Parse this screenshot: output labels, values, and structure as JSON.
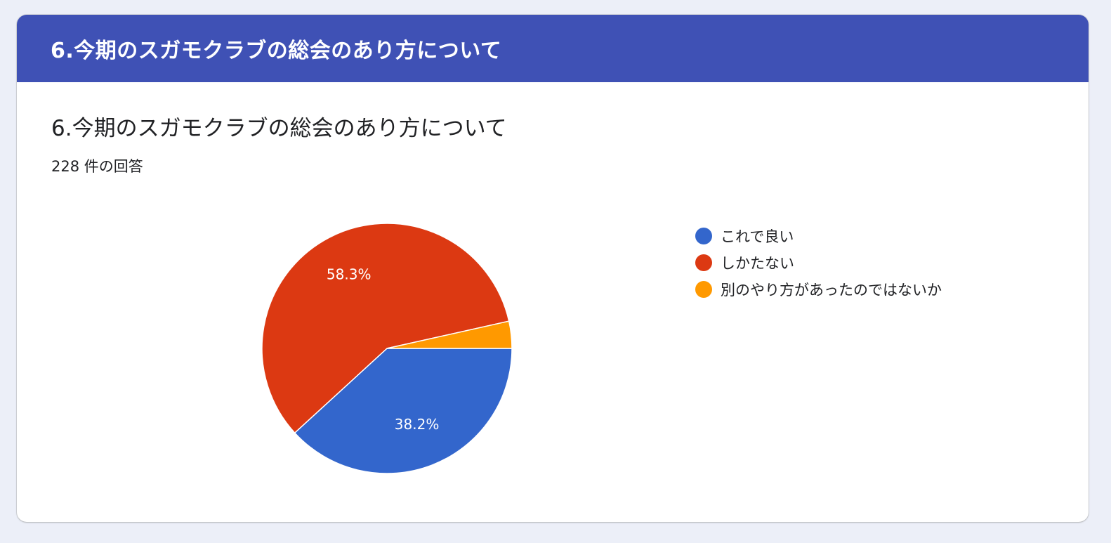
{
  "header": {
    "title": "6.今期のスガモクラブの総会のあり方について"
  },
  "question": {
    "title": "6.今期のスガモクラブの総会のあり方について",
    "response_count": "228 件の回答"
  },
  "chart_data": {
    "type": "pie",
    "categories": [
      "これで良い",
      "しかたない",
      "別のやり方があったのではないか"
    ],
    "values": [
      38.2,
      58.3,
      3.5
    ],
    "value_labels": [
      "38.2%",
      "58.3%",
      ""
    ],
    "colors": [
      "#3366cc",
      "#dc3912",
      "#ff9900"
    ],
    "legend_position": "right"
  }
}
